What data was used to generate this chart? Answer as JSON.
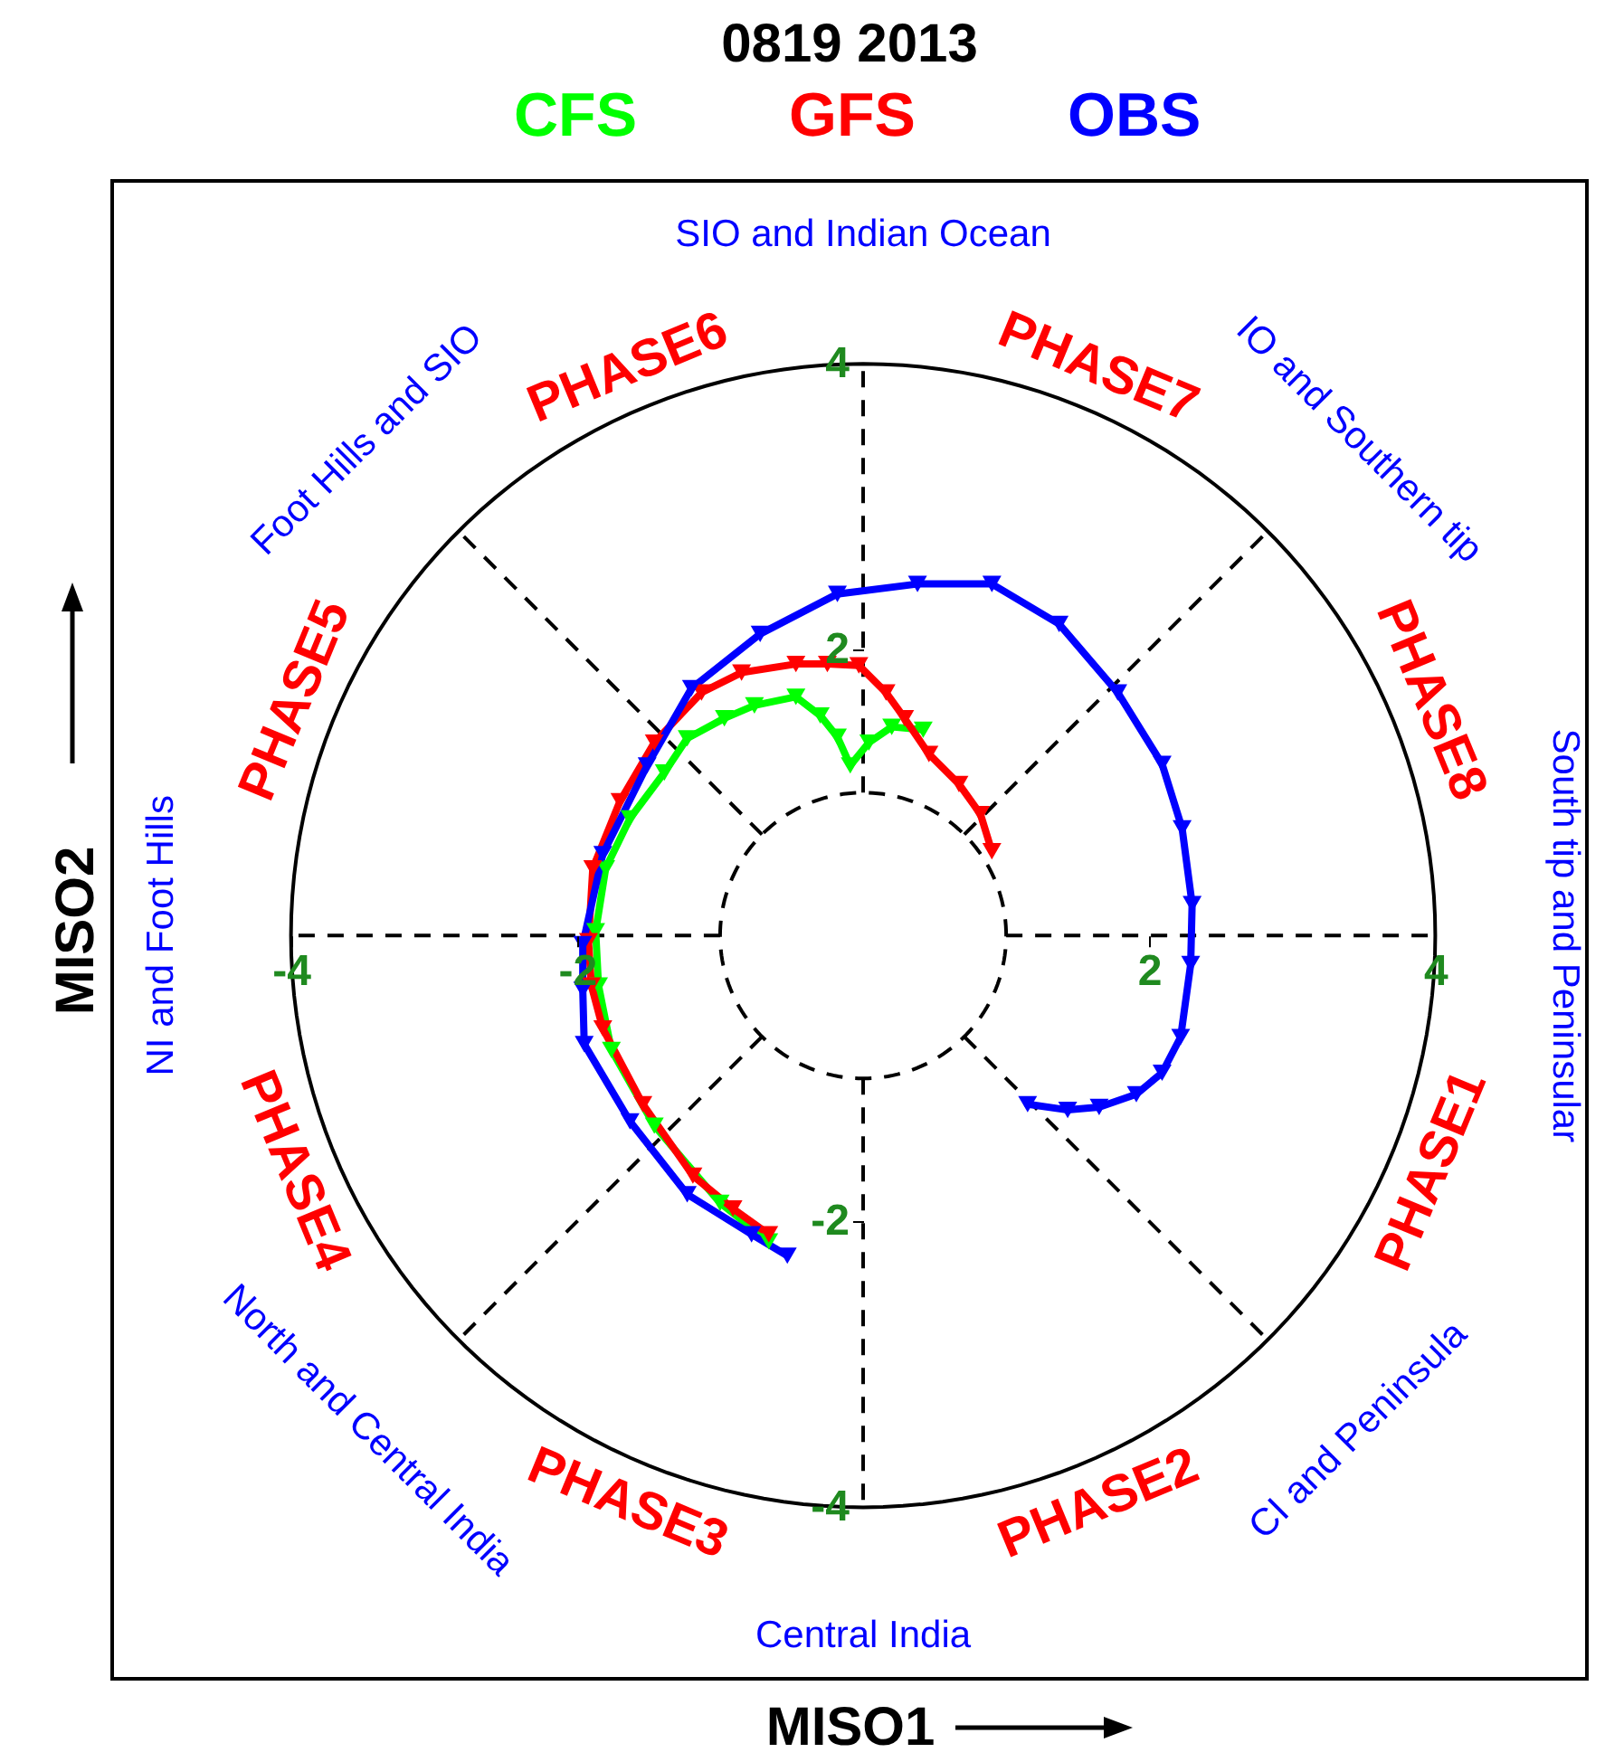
{
  "chart_data": {
    "type": "line",
    "title": "0819 2013",
    "xlabel": "MISO1",
    "ylabel": "MISO2",
    "marker": "triangle",
    "legend": "top",
    "xlim": [
      -5.25,
      5.06
    ],
    "ylim": [
      -5.2,
      5.28
    ],
    "xticks": [
      -4,
      -2,
      2,
      4
    ],
    "yticks": [
      -4,
      -2,
      2,
      4
    ],
    "series": [
      {
        "name": "CFS",
        "color": "#00ff00",
        "x": [
          -0.66,
          -1.0,
          -1.46,
          -1.76,
          -1.85,
          -1.87,
          -1.8,
          -1.63,
          -1.39,
          -1.23,
          -0.97,
          -0.76,
          -0.47,
          -0.3,
          -0.18,
          -0.09,
          0.04,
          0.2,
          0.42
        ],
        "values": [
          -2.14,
          -1.87,
          -1.33,
          -0.8,
          -0.35,
          0.03,
          0.47,
          0.82,
          1.14,
          1.38,
          1.52,
          1.61,
          1.67,
          1.54,
          1.39,
          1.19,
          1.35,
          1.46,
          1.44
        ]
      },
      {
        "name": "GFS",
        "color": "#ff0000",
        "x": [
          -0.66,
          -0.91,
          -1.19,
          -1.54,
          -1.82,
          -1.9,
          -1.92,
          -1.89,
          -1.7,
          -1.46,
          -1.13,
          -0.85,
          -0.47,
          -0.25,
          -0.03,
          0.16,
          0.29,
          0.46,
          0.67,
          0.82,
          0.9
        ],
        "values": [
          -2.09,
          -1.91,
          -1.68,
          -1.18,
          -0.65,
          -0.35,
          -0.04,
          0.47,
          0.94,
          1.35,
          1.7,
          1.84,
          1.9,
          1.9,
          1.89,
          1.7,
          1.52,
          1.27,
          1.06,
          0.85,
          0.59
        ]
      },
      {
        "name": "OBS",
        "color": "#0000ff",
        "x": [
          -0.53,
          -0.78,
          -1.23,
          -1.63,
          -1.95,
          -1.96,
          -1.96,
          -1.82,
          -1.51,
          -1.2,
          -0.72,
          -0.18,
          0.38,
          0.9,
          1.37,
          1.78,
          2.09,
          2.23,
          2.3,
          2.29,
          2.22,
          2.09,
          1.91,
          1.65,
          1.43,
          1.15
        ],
        "values": [
          -2.24,
          -2.09,
          -1.81,
          -1.3,
          -0.76,
          -0.38,
          -0.06,
          0.57,
          1.19,
          1.73,
          2.11,
          2.39,
          2.46,
          2.46,
          2.18,
          1.7,
          1.2,
          0.75,
          0.22,
          -0.2,
          -0.71,
          -0.96,
          -1.11,
          -1.2,
          -1.22,
          -1.18
        ]
      }
    ],
    "annotations": [
      "SIO and Indian Ocean",
      "PHASE7",
      "IO and Southern tip",
      "PHASE8",
      "South tip and Peninsular",
      "PHASE1",
      "CI and Peninsula",
      "PHASE2",
      "Central India",
      "PHASE3",
      "North and Central India",
      "PHASE4",
      "NI and Foot Hills",
      "PHASE5",
      "Foot Hills and SIO",
      "PHASE6"
    ]
  }
}
